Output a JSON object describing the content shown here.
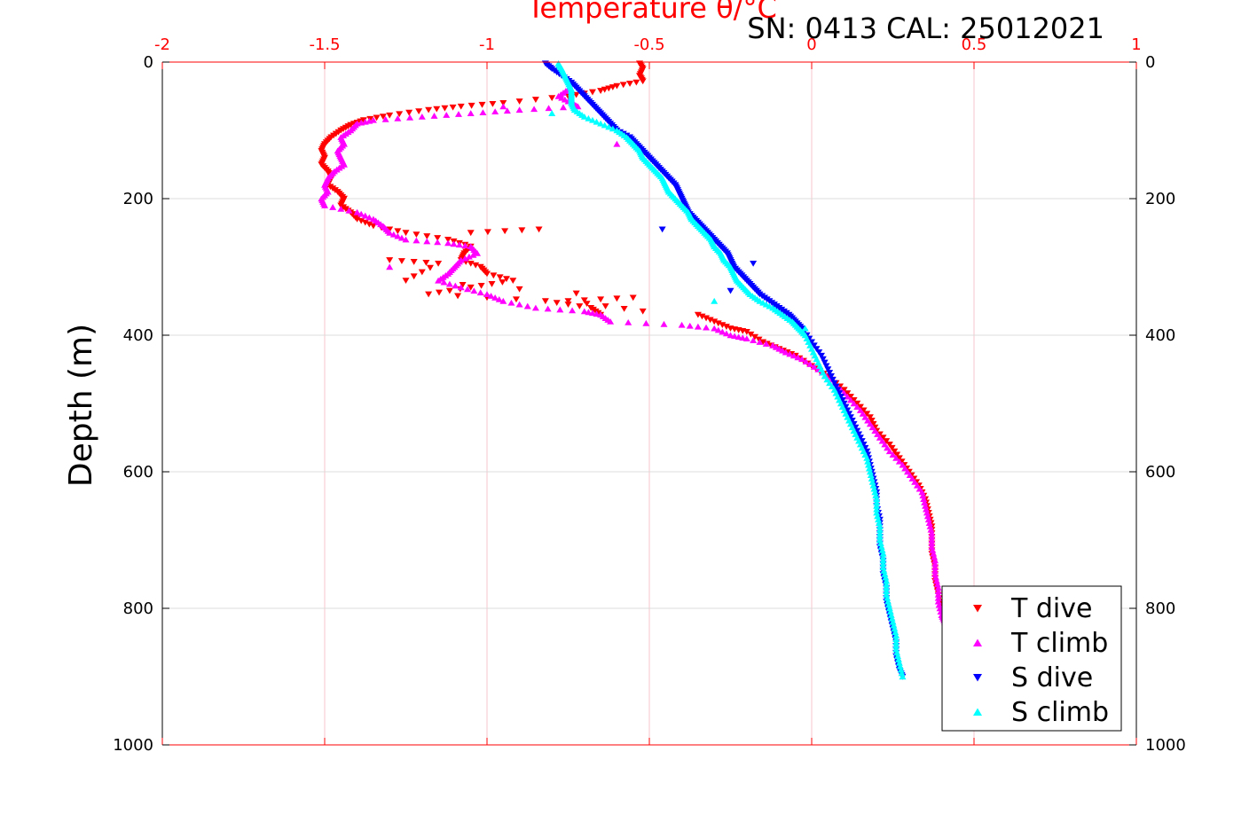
{
  "chart_data": {
    "type": "scatter",
    "title": "Temperature θ/°C",
    "subtitle": "SN: 0413  CAL: 25012021",
    "xlabel": "Temperature θ/°C",
    "ylabel": "Depth (m)",
    "xlim": [
      -2,
      1
    ],
    "ylim": [
      0,
      1000
    ],
    "y_reversed": true,
    "xticks": [
      -2,
      -1.5,
      -1,
      -0.5,
      0,
      0.5,
      1
    ],
    "xtick_labels": [
      "-2",
      "-1.5",
      "-1",
      "-0.5",
      "0",
      "0.5",
      "1"
    ],
    "yticks": [
      0,
      200,
      400,
      600,
      800,
      1000
    ],
    "ytick_labels": [
      "0",
      "200",
      "400",
      "600",
      "800",
      "1000"
    ],
    "grid": true,
    "legend_position": "bottom-right",
    "series": [
      {
        "name": "T dive",
        "marker": "triangle-down",
        "color": "#ff0000",
        "points": [
          [
            -0.53,
            2
          ],
          [
            -0.52,
            10
          ],
          [
            -0.53,
            20
          ],
          [
            -0.52,
            28
          ],
          [
            -0.6,
            35
          ],
          [
            -0.65,
            42
          ],
          [
            -0.75,
            50
          ],
          [
            -0.95,
            60
          ],
          [
            -1.08,
            65
          ],
          [
            -1.18,
            70
          ],
          [
            -1.3,
            78
          ],
          [
            -1.38,
            85
          ],
          [
            -1.42,
            92
          ],
          [
            -1.45,
            100
          ],
          [
            -1.48,
            110
          ],
          [
            -1.5,
            120
          ],
          [
            -1.51,
            130
          ],
          [
            -1.5,
            140
          ],
          [
            -1.51,
            150
          ],
          [
            -1.49,
            160
          ],
          [
            -1.48,
            170
          ],
          [
            -1.49,
            180
          ],
          [
            -1.46,
            190
          ],
          [
            -1.44,
            200
          ],
          [
            -1.45,
            210
          ],
          [
            -1.42,
            220
          ],
          [
            -1.4,
            230
          ],
          [
            -1.35,
            240
          ],
          [
            -1.25,
            250
          ],
          [
            -1.12,
            260
          ],
          [
            -1.05,
            270
          ],
          [
            -1.07,
            280
          ],
          [
            -1.08,
            290
          ],
          [
            -1.02,
            300
          ],
          [
            -1.0,
            310
          ],
          [
            -0.92,
            320
          ],
          [
            -1.05,
            330
          ],
          [
            -1.18,
            340
          ],
          [
            -0.82,
            350
          ],
          [
            -0.68,
            360
          ],
          [
            -0.65,
            370
          ],
          [
            -0.35,
            370
          ],
          [
            -0.3,
            380
          ],
          [
            -0.25,
            390
          ],
          [
            -0.2,
            395
          ],
          [
            -0.15,
            410
          ],
          [
            -0.1,
            420
          ],
          [
            -0.05,
            430
          ],
          [
            0.0,
            445
          ],
          [
            0.05,
            460
          ],
          [
            0.1,
            480
          ],
          [
            0.14,
            500
          ],
          [
            0.18,
            520
          ],
          [
            0.2,
            540
          ],
          [
            0.24,
            560
          ],
          [
            0.27,
            580
          ],
          [
            0.3,
            600
          ],
          [
            0.33,
            620
          ],
          [
            0.35,
            640
          ],
          [
            0.36,
            660
          ],
          [
            0.37,
            680
          ],
          [
            0.37,
            700
          ],
          [
            0.37,
            720
          ],
          [
            0.38,
            740
          ],
          [
            0.38,
            760
          ],
          [
            0.39,
            780
          ],
          [
            0.4,
            800
          ],
          [
            0.41,
            820
          ],
          [
            -0.84,
            245
          ],
          [
            -1.05,
            250
          ],
          [
            -1.3,
            290
          ],
          [
            -1.15,
            295
          ],
          [
            -1.25,
            320
          ],
          [
            -0.55,
            345
          ],
          [
            -0.75,
            350
          ],
          [
            -0.52,
            365
          ]
        ]
      },
      {
        "name": "T climb",
        "marker": "triangle-up",
        "color": "#ff00ff",
        "points": [
          [
            -0.75,
            40
          ],
          [
            -0.78,
            50
          ],
          [
            -0.74,
            60
          ],
          [
            -0.72,
            65
          ],
          [
            -0.9,
            70
          ],
          [
            -1.05,
            75
          ],
          [
            -1.2,
            80
          ],
          [
            -1.35,
            85
          ],
          [
            -1.4,
            90
          ],
          [
            -1.42,
            100
          ],
          [
            -1.45,
            110
          ],
          [
            -1.44,
            120
          ],
          [
            -1.46,
            130
          ],
          [
            -1.45,
            140
          ],
          [
            -1.44,
            150
          ],
          [
            -1.47,
            160
          ],
          [
            -1.49,
            170
          ],
          [
            -1.5,
            180
          ],
          [
            -1.49,
            190
          ],
          [
            -1.51,
            200
          ],
          [
            -1.5,
            210
          ],
          [
            -1.4,
            220
          ],
          [
            -1.35,
            230
          ],
          [
            -1.32,
            240
          ],
          [
            -1.3,
            250
          ],
          [
            -1.25,
            260
          ],
          [
            -1.12,
            265
          ],
          [
            -1.05,
            270
          ],
          [
            -1.03,
            280
          ],
          [
            -1.08,
            290
          ],
          [
            -1.1,
            300
          ],
          [
            -1.12,
            310
          ],
          [
            -1.15,
            320
          ],
          [
            -1.08,
            330
          ],
          [
            -1.0,
            340
          ],
          [
            -0.95,
            350
          ],
          [
            -0.85,
            360
          ],
          [
            -0.7,
            365
          ],
          [
            -0.65,
            370
          ],
          [
            -0.62,
            380
          ],
          [
            -0.4,
            385
          ],
          [
            -0.3,
            390
          ],
          [
            -0.25,
            400
          ],
          [
            -0.2,
            405
          ],
          [
            -0.12,
            415
          ],
          [
            -0.08,
            425
          ],
          [
            -0.03,
            435
          ],
          [
            0.02,
            450
          ],
          [
            0.07,
            470
          ],
          [
            0.11,
            490
          ],
          [
            0.15,
            510
          ],
          [
            0.18,
            530
          ],
          [
            0.21,
            550
          ],
          [
            0.24,
            570
          ],
          [
            0.28,
            590
          ],
          [
            0.31,
            610
          ],
          [
            0.34,
            630
          ],
          [
            0.35,
            650
          ],
          [
            0.36,
            670
          ],
          [
            0.37,
            690
          ],
          [
            0.37,
            710
          ],
          [
            0.38,
            730
          ],
          [
            0.38,
            750
          ],
          [
            0.39,
            770
          ],
          [
            0.39,
            790
          ],
          [
            0.4,
            810
          ],
          [
            0.41,
            820
          ],
          [
            -0.6,
            120
          ],
          [
            -0.95,
            65
          ],
          [
            -1.3,
            300
          ]
        ]
      },
      {
        "name": "S dive",
        "marker": "triangle-down",
        "color": "#0000ff",
        "points": [
          [
            -0.82,
            2
          ],
          [
            -0.8,
            10
          ],
          [
            -0.77,
            20
          ],
          [
            -0.74,
            30
          ],
          [
            -0.72,
            40
          ],
          [
            -0.7,
            50
          ],
          [
            -0.68,
            60
          ],
          [
            -0.66,
            70
          ],
          [
            -0.64,
            80
          ],
          [
            -0.62,
            90
          ],
          [
            -0.6,
            100
          ],
          [
            -0.56,
            110
          ],
          [
            -0.54,
            120
          ],
          [
            -0.52,
            130
          ],
          [
            -0.5,
            140
          ],
          [
            -0.48,
            150
          ],
          [
            -0.46,
            160
          ],
          [
            -0.44,
            170
          ],
          [
            -0.42,
            180
          ],
          [
            -0.41,
            190
          ],
          [
            -0.4,
            200
          ],
          [
            -0.39,
            210
          ],
          [
            -0.38,
            220
          ],
          [
            -0.36,
            230
          ],
          [
            -0.34,
            240
          ],
          [
            -0.32,
            250
          ],
          [
            -0.3,
            260
          ],
          [
            -0.28,
            270
          ],
          [
            -0.26,
            280
          ],
          [
            -0.25,
            290
          ],
          [
            -0.24,
            300
          ],
          [
            -0.22,
            310
          ],
          [
            -0.2,
            320
          ],
          [
            -0.18,
            330
          ],
          [
            -0.16,
            340
          ],
          [
            -0.13,
            350
          ],
          [
            -0.1,
            360
          ],
          [
            -0.07,
            370
          ],
          [
            -0.05,
            380
          ],
          [
            -0.03,
            390
          ],
          [
            0.0,
            410
          ],
          [
            0.03,
            430
          ],
          [
            0.05,
            450
          ],
          [
            0.07,
            470
          ],
          [
            0.09,
            490
          ],
          [
            0.11,
            510
          ],
          [
            0.13,
            530
          ],
          [
            0.15,
            550
          ],
          [
            0.17,
            570
          ],
          [
            0.18,
            590
          ],
          [
            0.19,
            610
          ],
          [
            0.2,
            630
          ],
          [
            0.2,
            650
          ],
          [
            0.21,
            670
          ],
          [
            0.21,
            690
          ],
          [
            0.21,
            710
          ],
          [
            0.22,
            730
          ],
          [
            0.22,
            750
          ],
          [
            0.23,
            770
          ],
          [
            0.23,
            790
          ],
          [
            0.24,
            810
          ],
          [
            0.25,
            830
          ],
          [
            0.26,
            850
          ],
          [
            0.26,
            870
          ],
          [
            0.27,
            890
          ],
          [
            0.28,
            900
          ],
          [
            -0.46,
            245
          ],
          [
            -0.25,
            335
          ],
          [
            -0.18,
            295
          ]
        ]
      },
      {
        "name": "S climb",
        "marker": "triangle-up",
        "color": "#00ffff",
        "points": [
          [
            -0.78,
            2
          ],
          [
            -0.77,
            10
          ],
          [
            -0.76,
            20
          ],
          [
            -0.75,
            30
          ],
          [
            -0.74,
            40
          ],
          [
            -0.74,
            50
          ],
          [
            -0.74,
            60
          ],
          [
            -0.73,
            70
          ],
          [
            -0.7,
            80
          ],
          [
            -0.65,
            90
          ],
          [
            -0.6,
            100
          ],
          [
            -0.57,
            110
          ],
          [
            -0.55,
            120
          ],
          [
            -0.53,
            130
          ],
          [
            -0.52,
            140
          ],
          [
            -0.5,
            150
          ],
          [
            -0.48,
            160
          ],
          [
            -0.46,
            170
          ],
          [
            -0.45,
            180
          ],
          [
            -0.44,
            190
          ],
          [
            -0.42,
            200
          ],
          [
            -0.4,
            210
          ],
          [
            -0.38,
            220
          ],
          [
            -0.37,
            230
          ],
          [
            -0.35,
            240
          ],
          [
            -0.33,
            250
          ],
          [
            -0.31,
            260
          ],
          [
            -0.3,
            270
          ],
          [
            -0.28,
            280
          ],
          [
            -0.27,
            290
          ],
          [
            -0.25,
            300
          ],
          [
            -0.24,
            310
          ],
          [
            -0.23,
            320
          ],
          [
            -0.21,
            330
          ],
          [
            -0.19,
            340
          ],
          [
            -0.16,
            350
          ],
          [
            -0.12,
            360
          ],
          [
            -0.09,
            370
          ],
          [
            -0.06,
            380
          ],
          [
            -0.04,
            390
          ],
          [
            -0.02,
            400
          ],
          [
            0.0,
            420
          ],
          [
            0.02,
            440
          ],
          [
            0.04,
            460
          ],
          [
            0.07,
            480
          ],
          [
            0.09,
            500
          ],
          [
            0.11,
            520
          ],
          [
            0.13,
            540
          ],
          [
            0.15,
            560
          ],
          [
            0.17,
            580
          ],
          [
            0.18,
            600
          ],
          [
            0.19,
            620
          ],
          [
            0.2,
            640
          ],
          [
            0.2,
            660
          ],
          [
            0.21,
            680
          ],
          [
            0.21,
            700
          ],
          [
            0.22,
            720
          ],
          [
            0.22,
            740
          ],
          [
            0.23,
            760
          ],
          [
            0.23,
            780
          ],
          [
            0.24,
            800
          ],
          [
            0.25,
            820
          ],
          [
            0.26,
            840
          ],
          [
            0.26,
            860
          ],
          [
            0.27,
            880
          ],
          [
            0.28,
            900
          ],
          [
            -0.8,
            75
          ],
          [
            -0.02,
            390
          ],
          [
            -0.3,
            350
          ]
        ]
      }
    ]
  }
}
